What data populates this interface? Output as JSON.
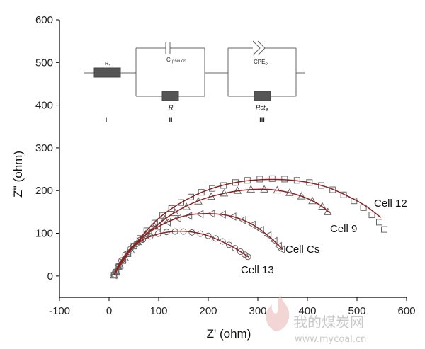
{
  "chart_data": {
    "type": "scatter",
    "xlabel": "Z' (ohm)",
    "ylabel": "Z'' (ohm)",
    "xlim": [
      -100,
      600
    ],
    "ylim": [
      -50,
      600
    ],
    "xticks": [
      -100,
      0,
      100,
      200,
      300,
      400,
      500,
      600
    ],
    "yticks": [
      0,
      100,
      200,
      300,
      400,
      500,
      600
    ],
    "series": [
      {
        "name": "Cell 12",
        "marker": "square",
        "points": [
          [
            10,
            2
          ],
          [
            14,
            9
          ],
          [
            20,
            22
          ],
          [
            28,
            36
          ],
          [
            38,
            52
          ],
          [
            50,
            70
          ],
          [
            62,
            88
          ],
          [
            76,
            106
          ],
          [
            92,
            124
          ],
          [
            108,
            142
          ],
          [
            126,
            158
          ],
          [
            145,
            172
          ],
          [
            165,
            185
          ],
          [
            186,
            196
          ],
          [
            208,
            205
          ],
          [
            231,
            212
          ],
          [
            255,
            219
          ],
          [
            279,
            224
          ],
          [
            304,
            227
          ],
          [
            329,
            228
          ],
          [
            354,
            227
          ],
          [
            379,
            224
          ],
          [
            404,
            219
          ],
          [
            428,
            212
          ],
          [
            451,
            202
          ],
          [
            473,
            190
          ],
          [
            494,
            176
          ],
          [
            513,
            160
          ],
          [
            530,
            143
          ],
          [
            545,
            126
          ],
          [
            555,
            109
          ]
        ],
        "fit": [
          [
            10,
            2
          ],
          [
            30,
            40
          ],
          [
            60,
            85
          ],
          [
            100,
            135
          ],
          [
            150,
            175
          ],
          [
            200,
            202
          ],
          [
            260,
            220
          ],
          [
            320,
            226
          ],
          [
            380,
            223
          ],
          [
            440,
            208
          ],
          [
            490,
            182
          ],
          [
            520,
            162
          ],
          [
            548,
            137
          ]
        ]
      },
      {
        "name": "Cell 9",
        "marker": "triangle",
        "points": [
          [
            10,
            2
          ],
          [
            15,
            10
          ],
          [
            22,
            25
          ],
          [
            32,
            42
          ],
          [
            44,
            60
          ],
          [
            58,
            80
          ],
          [
            74,
            98
          ],
          [
            92,
            116
          ],
          [
            112,
            133
          ],
          [
            133,
            148
          ],
          [
            156,
            162
          ],
          [
            180,
            175
          ],
          [
            206,
            186
          ],
          [
            232,
            194
          ],
          [
            259,
            200
          ],
          [
            286,
            203
          ],
          [
            313,
            203
          ],
          [
            339,
            201
          ],
          [
            364,
            195
          ],
          [
            388,
            187
          ],
          [
            410,
            176
          ],
          [
            430,
            163
          ],
          [
            441,
            150
          ]
        ],
        "fit": [
          [
            10,
            2
          ],
          [
            40,
            55
          ],
          [
            80,
            103
          ],
          [
            130,
            147
          ],
          [
            180,
            176
          ],
          [
            230,
            193
          ],
          [
            280,
            202
          ],
          [
            330,
            202
          ],
          [
            380,
            190
          ],
          [
            420,
            170
          ],
          [
            445,
            148
          ]
        ]
      },
      {
        "name": "Cell Cs",
        "marker": "triangle-left",
        "points": [
          [
            10,
            2
          ],
          [
            14,
            10
          ],
          [
            20,
            24
          ],
          [
            28,
            40
          ],
          [
            38,
            56
          ],
          [
            50,
            72
          ],
          [
            64,
            88
          ],
          [
            80,
            102
          ],
          [
            98,
            115
          ],
          [
            118,
            126
          ],
          [
            139,
            135
          ],
          [
            161,
            141
          ],
          [
            184,
            145
          ],
          [
            207,
            146
          ],
          [
            229,
            144
          ],
          [
            250,
            139
          ],
          [
            270,
            131
          ],
          [
            289,
            120
          ],
          [
            306,
            108
          ],
          [
            321,
            95
          ],
          [
            333,
            82
          ],
          [
            342,
            70
          ],
          [
            348,
            62
          ]
        ],
        "fit": [
          [
            10,
            2
          ],
          [
            30,
            45
          ],
          [
            60,
            83
          ],
          [
            100,
            116
          ],
          [
            150,
            140
          ],
          [
            200,
            146
          ],
          [
            250,
            139
          ],
          [
            290,
            120
          ],
          [
            320,
            95
          ],
          [
            340,
            74
          ],
          [
            350,
            62
          ]
        ]
      },
      {
        "name": "Cell 13",
        "marker": "circle",
        "points": [
          [
            10,
            2
          ],
          [
            13,
            10
          ],
          [
            18,
            22
          ],
          [
            25,
            36
          ],
          [
            33,
            50
          ],
          [
            43,
            63
          ],
          [
            55,
            75
          ],
          [
            68,
            85
          ],
          [
            83,
            93
          ],
          [
            99,
            99
          ],
          [
            116,
            103
          ],
          [
            133,
            104
          ],
          [
            150,
            104
          ],
          [
            167,
            102
          ],
          [
            184,
            99
          ],
          [
            200,
            94
          ],
          [
            215,
            88
          ],
          [
            229,
            81
          ],
          [
            242,
            73
          ],
          [
            254,
            65
          ],
          [
            265,
            57
          ],
          [
            274,
            50
          ],
          [
            280,
            45
          ]
        ],
        "fit": [
          [
            10,
            2
          ],
          [
            25,
            37
          ],
          [
            50,
            70
          ],
          [
            80,
            91
          ],
          [
            120,
            103
          ],
          [
            160,
            104
          ],
          [
            200,
            94
          ],
          [
            240,
            74
          ],
          [
            265,
            57
          ],
          [
            282,
            44
          ]
        ]
      }
    ],
    "fit_color": "#8b2020",
    "marker_color": "#666666",
    "grid": false
  },
  "labels": {
    "cell12": "Cell 12",
    "cell9": "Cell 9",
    "cellcs": "Cell Cs",
    "cell13": "Cell 13"
  },
  "circuit": {
    "rs": "Rₛ",
    "cpseudo_c": "C",
    "cpseudo_sub": "pseudo",
    "r": "R",
    "cpe": "CPE",
    "cpe_sub": "e",
    "rct": "Rct",
    "rct_sub": "e",
    "section1": "I",
    "section2": "II",
    "section3": "III"
  },
  "watermark": {
    "text_cn": "我的煤炭网",
    "url": "www.mycoal.cn"
  }
}
